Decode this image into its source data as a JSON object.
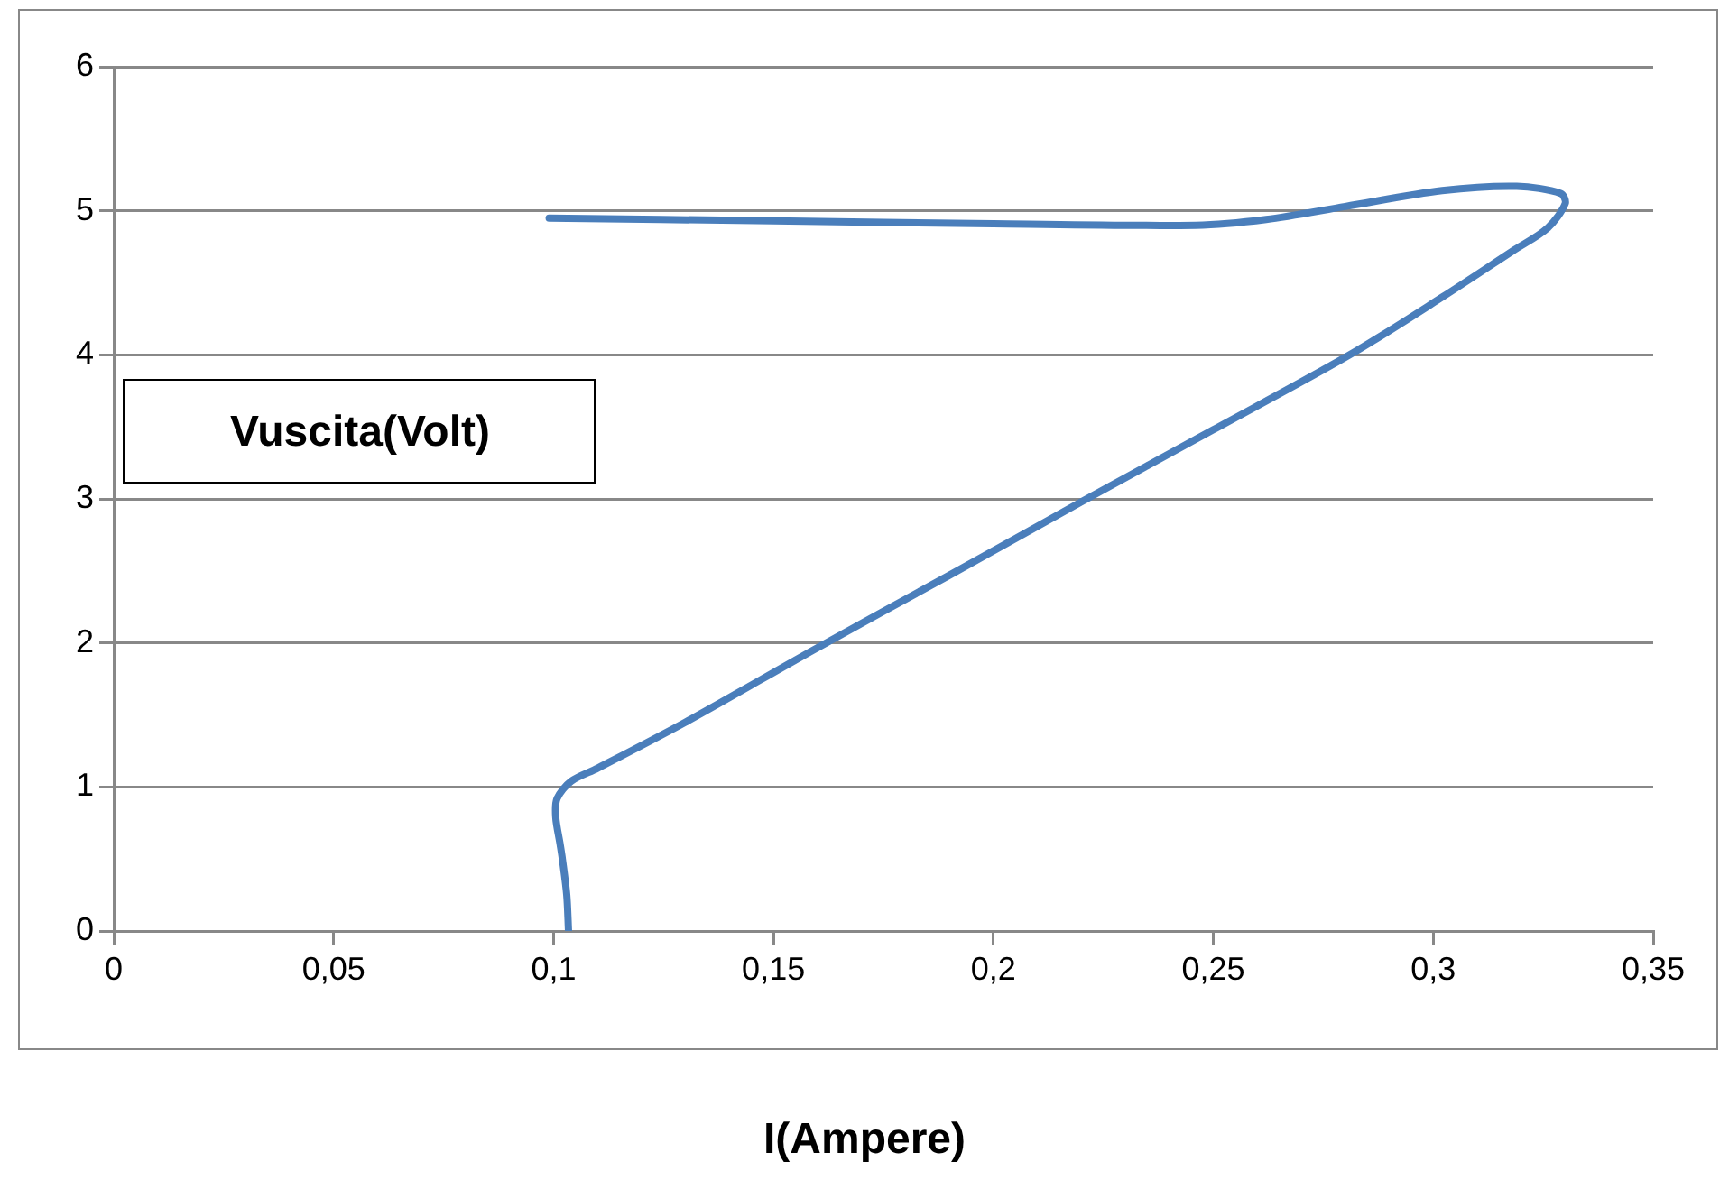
{
  "chart_data": {
    "type": "line",
    "xlabel": "I(Ampere)",
    "ylabel": "Vuscita(Volt)",
    "x": [
      0.1034,
      0.103,
      0.102,
      0.1015,
      0.1005,
      0.1008,
      0.104,
      0.11,
      0.13,
      0.159,
      0.19,
      0.22,
      0.25,
      0.281,
      0.302,
      0.318,
      0.326,
      0.33,
      0.329,
      0.319,
      0.302,
      0.28,
      0.262,
      0.246,
      0.2,
      0.15,
      0.099
    ],
    "series": [
      {
        "color": "#4a7ebb",
        "values": [
          0,
          0.25,
          0.5,
          0.6,
          0.79,
          0.92,
          1.04,
          1.13,
          1.45,
          1.95,
          2.47,
          2.98,
          3.48,
          4.0,
          4.4,
          4.72,
          4.88,
          5.05,
          5.12,
          5.17,
          5.14,
          5.03,
          4.94,
          4.9,
          4.91,
          4.93,
          4.95
        ]
      }
    ],
    "xlim": [
      0,
      0.35
    ],
    "xticks": [
      0,
      {
        "value": 0.05,
        "label": "0,05"
      },
      {
        "value": 0.1,
        "label": "0,1"
      },
      {
        "value": 0.15,
        "label": "0,15"
      },
      {
        "value": 0.2,
        "label": "0,2"
      },
      {
        "value": 0.25,
        "label": "0,25"
      },
      {
        "value": 0.3,
        "label": "0,3"
      },
      {
        "value": 0.35,
        "label": "0,35"
      }
    ],
    "ylim": [
      0,
      6
    ],
    "yticks": [
      0,
      1,
      2,
      3,
      4,
      5,
      6
    ],
    "grid": "y",
    "legend": false,
    "marker": "none",
    "line_style": "solid"
  }
}
